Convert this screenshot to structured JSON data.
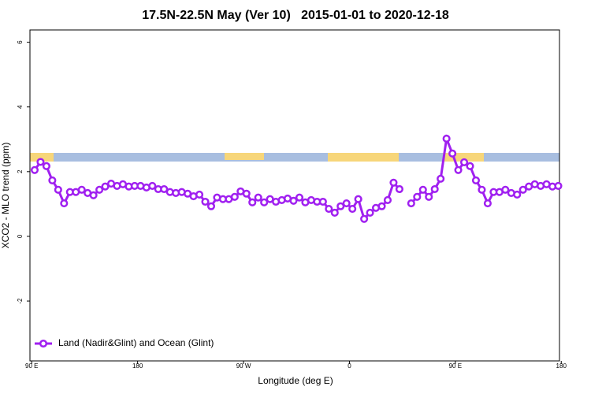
{
  "chart_data": {
    "type": "line",
    "title": "17.5N-22.5N May (Ver 10)   2015-01-01 to 2020-12-18",
    "x_label": "Longitude (deg E)",
    "y_label": "XCO2 - MLO trend (ppm)",
    "x": [
      92.5,
      97.5,
      102.5,
      107.5,
      112.5,
      117.5,
      122.5,
      127.5,
      132.5,
      137.5,
      142.5,
      147.5,
      152.5,
      157.5,
      162.5,
      167.5,
      172.5,
      177.5,
      182.5,
      187.5,
      192.5,
      197.5,
      202.5,
      207.5,
      212.5,
      217.5,
      222.5,
      227.5,
      232.5,
      237.5,
      242.5,
      247.5,
      252.5,
      257.5,
      262.5,
      267.5,
      272.5,
      277.5,
      282.5,
      287.5,
      292.5,
      297.5,
      302.5,
      307.5,
      312.5,
      317.5,
      322.5,
      327.5,
      332.5,
      337.5,
      342.5,
      347.5,
      352.5,
      357.5,
      362.5,
      367.5,
      372.5,
      377.5,
      382.5,
      387.5,
      392.5,
      397.5,
      402.5,
      407.5,
      412.5,
      417.5,
      422.5,
      427.5,
      432.5,
      437.5,
      442.5,
      447.5,
      452.5,
      457.5,
      462.5,
      467.5,
      472.5,
      477.5,
      482.5,
      487.5,
      492.5,
      497.5,
      502.5,
      507.5,
      512.5,
      517.5,
      522.5,
      527.5,
      532.5,
      537.5
    ],
    "series": [
      {
        "name": "Land (Nadir&Glint) and Ocean (Glint)",
        "color": "#a020f0",
        "values": [
          2.05,
          2.3,
          2.17,
          1.73,
          1.44,
          1.02,
          1.37,
          1.37,
          1.44,
          1.34,
          1.27,
          1.44,
          1.54,
          1.63,
          1.56,
          1.61,
          1.54,
          1.56,
          1.56,
          1.51,
          1.56,
          1.46,
          1.46,
          1.37,
          1.34,
          1.37,
          1.32,
          1.24,
          1.29,
          1.07,
          0.93,
          1.2,
          1.15,
          1.15,
          1.22,
          1.39,
          1.32,
          1.05,
          1.2,
          1.05,
          1.15,
          1.07,
          1.12,
          1.17,
          1.1,
          1.2,
          1.05,
          1.12,
          1.07,
          1.07,
          0.85,
          0.73,
          0.93,
          1.02,
          0.85,
          1.15,
          0.54,
          0.73,
          0.88,
          0.93,
          1.12,
          1.66,
          1.46,
          null,
          1.02,
          1.22,
          1.44,
          1.22,
          1.46,
          1.78,
          3.02,
          2.56,
          2.05,
          2.29,
          2.17,
          1.73,
          1.44,
          1.02,
          1.37,
          1.37,
          1.44,
          1.34,
          1.29,
          1.44,
          1.54,
          1.61,
          1.56,
          1.61,
          1.54,
          1.56
        ]
      }
    ],
    "xlim": [
      88.5,
      538.5
    ],
    "ylim": [
      -3.85,
      6.38
    ],
    "xticks": [
      {
        "value": 90,
        "label": "90 E"
      },
      180,
      {
        "value": 270,
        "label": "90 W"
      },
      {
        "value": 360,
        "label": "0"
      },
      {
        "value": 450,
        "label": "90 E"
      },
      {
        "value": 540,
        "label": "180"
      }
    ],
    "yticks": [
      -2,
      0,
      2,
      4,
      6
    ],
    "legend": "bottom-left"
  }
}
